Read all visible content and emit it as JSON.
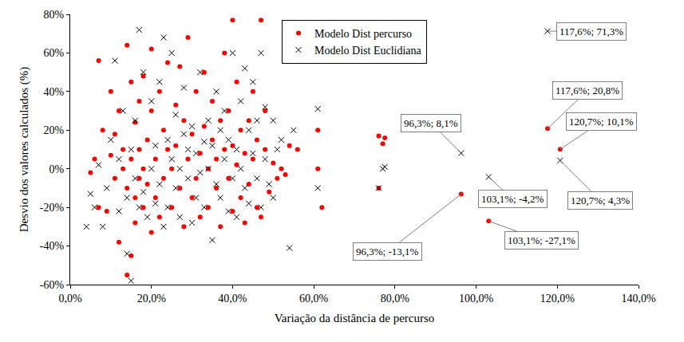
{
  "chart_data": {
    "type": "scatter",
    "x_label": "Variação da distância de percurso",
    "y_label": "Desvio dos valores calculados (%)",
    "xlim": [
      0,
      140
    ],
    "ylim": [
      -60,
      80
    ],
    "xticks": [
      {
        "value": 0,
        "label": "0,0%"
      },
      {
        "value": 20,
        "label": "20,0%"
      },
      {
        "value": 40,
        "label": "40,0%"
      },
      {
        "value": 60,
        "label": "60,0%"
      },
      {
        "value": 80,
        "label": "80,0%"
      },
      {
        "value": 100,
        "label": "100,0%"
      },
      {
        "value": 120,
        "label": "120,0%"
      },
      {
        "value": 140,
        "label": "140,0%"
      }
    ],
    "yticks": [
      {
        "value": -60,
        "label": "-60%"
      },
      {
        "value": -40,
        "label": "-40%"
      },
      {
        "value": -20,
        "label": "-20%"
      },
      {
        "value": 0,
        "label": "0%"
      },
      {
        "value": 20,
        "label": "20%"
      },
      {
        "value": 40,
        "label": "40%"
      },
      {
        "value": 60,
        "label": "60%"
      },
      {
        "value": 80,
        "label": "80%"
      }
    ],
    "grid": false,
    "legend": "top",
    "series": [
      {
        "name": "Modelo Dist percurso",
        "color": "#ff0000",
        "marker": "circle",
        "x": [
          5,
          6,
          7,
          7,
          8,
          9,
          10,
          10,
          11,
          11,
          12,
          12,
          13,
          13,
          14,
          14,
          14,
          15,
          15,
          15,
          16,
          16,
          16,
          17,
          17,
          17,
          18,
          18,
          18,
          19,
          19,
          20,
          20,
          20,
          21,
          21,
          22,
          22,
          23,
          23,
          24,
          24,
          25,
          25,
          26,
          26,
          27,
          27,
          28,
          28,
          29,
          29,
          30,
          30,
          31,
          31,
          32,
          32,
          33,
          33,
          34,
          34,
          35,
          35,
          36,
          36,
          37,
          37,
          38,
          38,
          39,
          39,
          40,
          40,
          40,
          41,
          41,
          42,
          42,
          43,
          43,
          44,
          44,
          45,
          45,
          46,
          46,
          47,
          47,
          48,
          48,
          49,
          50,
          51,
          52,
          53,
          54,
          56,
          61,
          62,
          61,
          76,
          77,
          77.5,
          76,
          96.3,
          103.1,
          117.6,
          120.7
        ],
        "values": [
          -2,
          5,
          56,
          -20,
          20,
          -22,
          7,
          40,
          -5,
          18,
          -38,
          30,
          0,
          10,
          64,
          -55,
          -10,
          45,
          -45,
          5,
          24,
          -28,
          -15,
          10,
          35,
          -5,
          0,
          -20,
          48,
          15,
          -8,
          62,
          -33,
          30,
          5,
          -15,
          40,
          -25,
          20,
          -5,
          10,
          55,
          -20,
          0,
          33,
          12,
          -10,
          53,
          25,
          -30,
          5,
          68,
          -15,
          18,
          40,
          -5,
          8,
          -25,
          22,
          50,
          0,
          -20,
          15,
          35,
          -10,
          5,
          25,
          -30,
          60,
          10,
          -5,
          30,
          77,
          -22,
          12,
          2,
          45,
          -15,
          20,
          8,
          -28,
          25,
          -8,
          40,
          5,
          -20,
          15,
          77,
          -25,
          10,
          30,
          -12,
          3,
          -5,
          0,
          -3,
          12,
          10,
          20,
          -20,
          0,
          17,
          13,
          16,
          -10,
          -13.1,
          -27.1,
          20.8,
          10.1
        ]
      },
      {
        "name": "Modelo Dist Euclidiana",
        "color": "#000000",
        "marker": "x",
        "x": [
          4,
          5,
          6,
          7,
          8,
          9,
          10,
          11,
          12,
          12,
          13,
          14,
          14,
          15,
          15,
          16,
          16,
          17,
          17,
          18,
          18,
          19,
          20,
          20,
          21,
          21,
          22,
          22,
          23,
          23,
          24,
          24,
          25,
          25,
          26,
          26,
          27,
          27,
          28,
          28,
          29,
          29,
          30,
          30,
          31,
          31,
          32,
          32,
          33,
          33,
          34,
          34,
          35,
          35,
          36,
          36,
          37,
          37,
          38,
          38,
          39,
          39,
          40,
          40,
          41,
          41,
          42,
          42,
          43,
          43,
          44,
          44,
          45,
          45,
          46,
          46,
          47,
          47,
          48,
          48,
          49,
          50,
          50,
          51,
          52,
          54,
          55,
          61,
          61,
          76,
          77,
          77.5,
          96.3,
          103.1,
          117.6,
          120.7
        ],
        "values": [
          -30,
          -13,
          -20,
          2,
          -30,
          -10,
          15,
          56,
          -22,
          5,
          30,
          -44,
          -15,
          -58,
          10,
          -5,
          25,
          72,
          -20,
          50,
          -12,
          -25,
          0,
          35,
          -18,
          12,
          -8,
          45,
          68,
          -30,
          15,
          -20,
          5,
          60,
          -10,
          28,
          0,
          -25,
          18,
          42,
          -5,
          10,
          -28,
          22,
          8,
          -15,
          50,
          -2,
          14,
          -20,
          25,
          0,
          -37,
          12,
          40,
          -8,
          20,
          -15,
          5,
          30,
          -22,
          15,
          60,
          -5,
          10,
          -25,
          35,
          0,
          52,
          -10,
          20,
          -18,
          8,
          45,
          -5,
          25,
          60,
          -20,
          32,
          5,
          -8,
          25,
          -15,
          10,
          15,
          -41,
          20,
          31,
          -10,
          -10,
          0,
          1,
          8.1,
          -4.2,
          71.3,
          4.3
        ]
      }
    ],
    "annotations": [
      {
        "text": "117,6%; 71,3%",
        "x": 117.6,
        "y": 71.3
      },
      {
        "text": "117,6%; 20,8%",
        "x": 117.6,
        "y": 20.8
      },
      {
        "text": "120,7%; 10,1%",
        "x": 120.7,
        "y": 10.1
      },
      {
        "text": "120,7%; 4,3%",
        "x": 120.7,
        "y": 4.3
      },
      {
        "text": "96,3%; 8,1%",
        "x": 96.3,
        "y": 8.1
      },
      {
        "text": "103,1%; -4,2%",
        "x": 103.1,
        "y": -4.2
      },
      {
        "text": "96,3%; -13,1%",
        "x": 96.3,
        "y": -13.1
      },
      {
        "text": "103,1%; -27,1%",
        "x": 103.1,
        "y": -27.1
      }
    ]
  }
}
